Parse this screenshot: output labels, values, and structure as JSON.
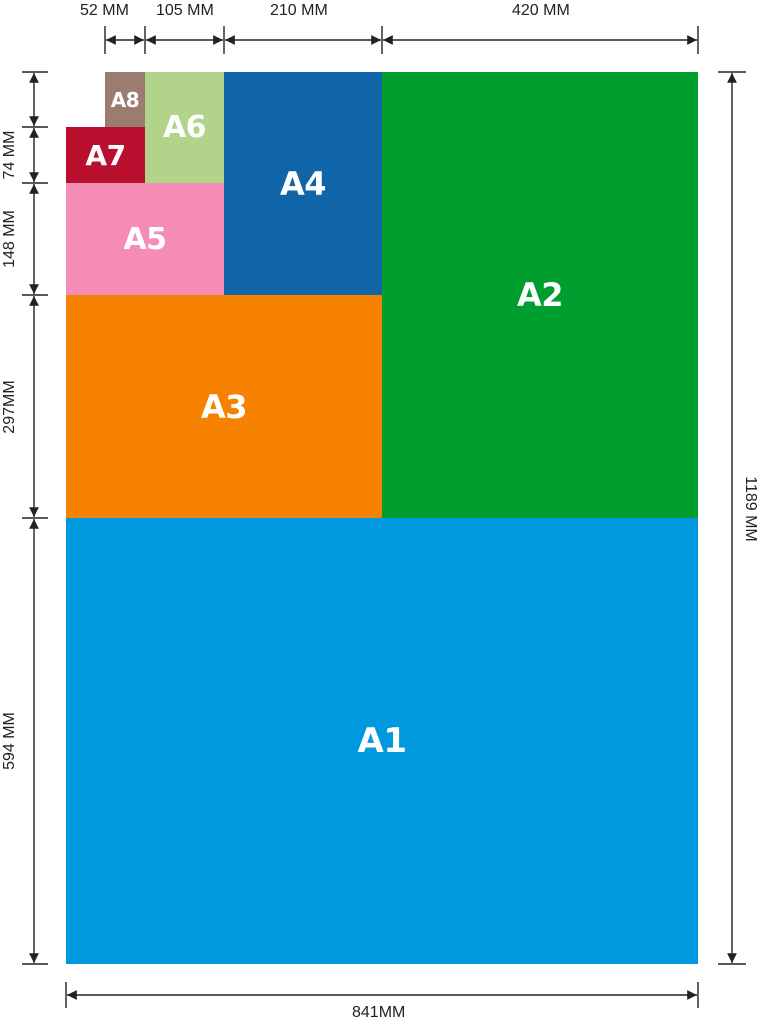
{
  "sheets": [
    {
      "id": "a1",
      "label": "A1",
      "color": "#0099e0"
    },
    {
      "id": "a2",
      "label": "A2",
      "color": "#009e2e"
    },
    {
      "id": "a3",
      "label": "A3",
      "color": "#f78100"
    },
    {
      "id": "a4",
      "label": "A4",
      "color": "#1064a8"
    },
    {
      "id": "a5",
      "label": "A5",
      "color": "#f48cb6"
    },
    {
      "id": "a6",
      "label": "A6",
      "color": "#b1d38a"
    },
    {
      "id": "a7",
      "label": "A7",
      "color": "#b80f2e"
    },
    {
      "id": "a8",
      "label": "A8",
      "color": "#9c7c6f"
    }
  ],
  "top_dimensions": [
    "52 MM",
    "105 MM",
    "210 MM",
    "420 MM"
  ],
  "left_dimensions": [
    "74 MM",
    "148 MM",
    "297MM",
    "594 MM"
  ],
  "right_dimension": "1189 MM",
  "bottom_dimension": "841MM",
  "line_color": "#222222"
}
